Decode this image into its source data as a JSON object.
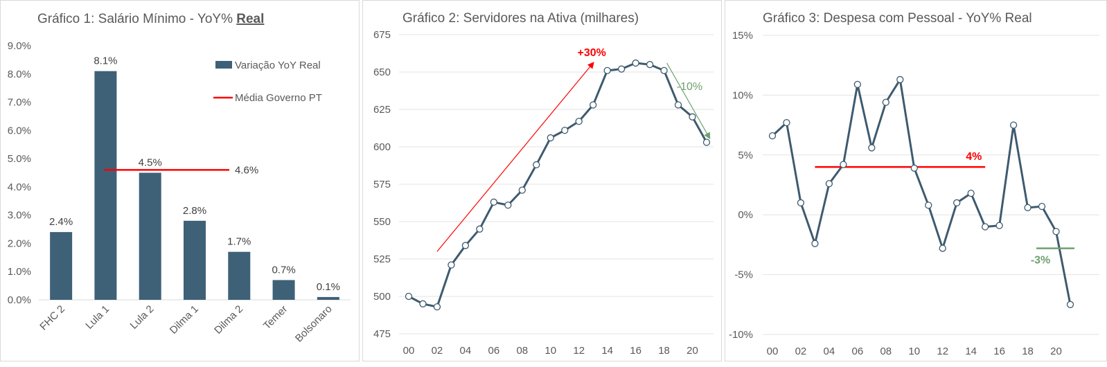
{
  "chart_data": [
    {
      "type": "bar",
      "title": "Gráfico 1: Salário Mínimo - YoY% ",
      "title_emphasis": "Real",
      "categories": [
        "FHC 2",
        "Lula 1",
        "Lula 2",
        "Dilma 1",
        "Dilma 2",
        "Temer",
        "Bolsonaro"
      ],
      "series": [
        {
          "name": "Variação YoY Real",
          "values": [
            2.4,
            8.1,
            4.5,
            2.8,
            1.7,
            0.7,
            0.1
          ],
          "labels": [
            "2.4%",
            "8.1%",
            "4.5%",
            "2.8%",
            "1.7%",
            "0.7%",
            "0.1%"
          ],
          "color": "#3e6178"
        }
      ],
      "reference_line": {
        "name": "Média Governo PT",
        "value": 4.6,
        "label": "4.6%",
        "color": "#ff0000",
        "from_category": "Lula 1",
        "to_category": "Dilma 1"
      },
      "y_ticks": [
        "0.0%",
        "1.0%",
        "2.0%",
        "3.0%",
        "4.0%",
        "5.0%",
        "6.0%",
        "7.0%",
        "8.0%",
        "9.0%"
      ],
      "ylim": [
        0,
        9
      ],
      "grid": false,
      "legend_position": "top-right"
    },
    {
      "type": "line",
      "title": "Gráfico 2: Servidores na Ativa (milhares)",
      "x_ticks": [
        "00",
        "02",
        "04",
        "06",
        "08",
        "10",
        "12",
        "14",
        "16",
        "18",
        "20"
      ],
      "y_ticks": [
        "475",
        "500",
        "525",
        "550",
        "575",
        "600",
        "625",
        "650",
        "675"
      ],
      "ylim": [
        475,
        675
      ],
      "xlim": [
        2000,
        2021
      ],
      "grid": true,
      "series": [
        {
          "x": [
            2000,
            2001,
            2002,
            2003,
            2004,
            2005,
            2006,
            2007,
            2008,
            2009,
            2010,
            2011,
            2012,
            2013,
            2014,
            2015,
            2016,
            2017,
            2018,
            2019,
            2020,
            2021
          ],
          "y": [
            500,
            495,
            493,
            521,
            534,
            545,
            563,
            561,
            571,
            588,
            606,
            611,
            617,
            628,
            651,
            652,
            656,
            655,
            651,
            628,
            620,
            603
          ],
          "color": "#3e5a6e"
        }
      ],
      "annotations": [
        {
          "text": "+30%",
          "color": "#ff0000",
          "from": [
            2002,
            530
          ],
          "to": [
            2013,
            656
          ]
        },
        {
          "text": "-10%",
          "color": "#70a070",
          "from": [
            2018.2,
            656
          ],
          "to": [
            2021.2,
            606
          ]
        }
      ]
    },
    {
      "type": "line",
      "title": "Gráfico 3: Despesa com Pessoal - YoY% Real",
      "x_ticks": [
        "00",
        "02",
        "04",
        "06",
        "08",
        "10",
        "12",
        "14",
        "16",
        "18",
        "20"
      ],
      "y_ticks": [
        "-10%",
        "-5%",
        "0%",
        "5%",
        "10%",
        "15%"
      ],
      "ylim": [
        -10,
        15
      ],
      "xlim": [
        2000,
        2021
      ],
      "grid": true,
      "series": [
        {
          "x": [
            2000,
            2001,
            2002,
            2003,
            2004,
            2005,
            2006,
            2007,
            2008,
            2009,
            2010,
            2011,
            2012,
            2013,
            2014,
            2015,
            2016,
            2017,
            2018,
            2019,
            2020,
            2021
          ],
          "y": [
            6.6,
            7.7,
            1.0,
            -2.4,
            2.6,
            4.2,
            10.9,
            5.6,
            9.4,
            11.3,
            3.9,
            0.8,
            -2.8,
            1.0,
            1.8,
            -1.0,
            -0.9,
            7.5,
            0.6,
            0.7,
            -1.4,
            -7.5
          ],
          "color": "#3e5a6e"
        }
      ],
      "reference_lines": [
        {
          "value": 4.0,
          "label": "4%",
          "color": "#ff0000",
          "x_from": 2003,
          "x_to": 2015
        },
        {
          "value": -2.8,
          "label": "-3%",
          "color": "#70a070",
          "x_from": 2019,
          "x_to": 2021
        }
      ]
    }
  ]
}
